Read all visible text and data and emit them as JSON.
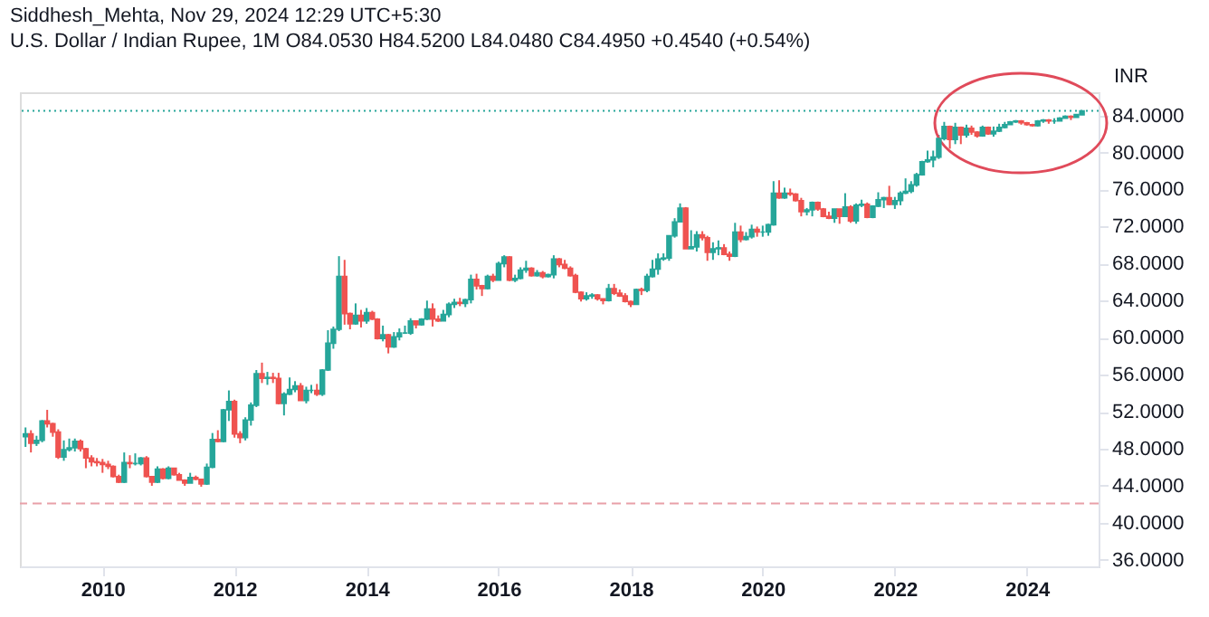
{
  "chart_data": {
    "type": "candlestick",
    "title": "Siddhesh_Mehta, Nov 29, 2024 12:29 UTC+5:30",
    "subtitle": "U.S. Dollar / Indian Rupee, 1M  O84.0530 H84.5200 L84.0480 C84.4950 +0.4540 (+0.54%)",
    "ylabel": "INR",
    "x": [
      "2008-11",
      "2008-12",
      "2009-01",
      "2009-02",
      "2009-03",
      "2009-04",
      "2009-05",
      "2009-06",
      "2009-07",
      "2009-08",
      "2009-09",
      "2009-10",
      "2009-11",
      "2009-12",
      "2010-01",
      "2010-02",
      "2010-03",
      "2010-04",
      "2010-05",
      "2010-06",
      "2010-07",
      "2010-08",
      "2010-09",
      "2010-10",
      "2010-11",
      "2010-12",
      "2011-01",
      "2011-02",
      "2011-03",
      "2011-04",
      "2011-05",
      "2011-06",
      "2011-07",
      "2011-08",
      "2011-09",
      "2011-10",
      "2011-11",
      "2011-12",
      "2012-01",
      "2012-02",
      "2012-03",
      "2012-04",
      "2012-05",
      "2012-06",
      "2012-07",
      "2012-08",
      "2012-09",
      "2012-10",
      "2012-11",
      "2012-12",
      "2013-01",
      "2013-02",
      "2013-03",
      "2013-04",
      "2013-05",
      "2013-06",
      "2013-07",
      "2013-08",
      "2013-09",
      "2013-10",
      "2013-11",
      "2013-12",
      "2014-01",
      "2014-02",
      "2014-03",
      "2014-04",
      "2014-05",
      "2014-06",
      "2014-07",
      "2014-08",
      "2014-09",
      "2014-10",
      "2014-11",
      "2014-12",
      "2015-01",
      "2015-02",
      "2015-03",
      "2015-04",
      "2015-05",
      "2015-06",
      "2015-07",
      "2015-08",
      "2015-09",
      "2015-10",
      "2015-11",
      "2015-12",
      "2016-01",
      "2016-02",
      "2016-03",
      "2016-04",
      "2016-05",
      "2016-06",
      "2016-07",
      "2016-08",
      "2016-09",
      "2016-10",
      "2016-11",
      "2016-12",
      "2017-01",
      "2017-02",
      "2017-03",
      "2017-04",
      "2017-05",
      "2017-06",
      "2017-07",
      "2017-08",
      "2017-09",
      "2017-10",
      "2017-11",
      "2017-12",
      "2018-01",
      "2018-02",
      "2018-03",
      "2018-04",
      "2018-05",
      "2018-06",
      "2018-07",
      "2018-08",
      "2018-09",
      "2018-10",
      "2018-11",
      "2018-12",
      "2019-01",
      "2019-02",
      "2019-03",
      "2019-04",
      "2019-05",
      "2019-06",
      "2019-07",
      "2019-08",
      "2019-09",
      "2019-10",
      "2019-11",
      "2019-12",
      "2020-01",
      "2020-02",
      "2020-03",
      "2020-04",
      "2020-05",
      "2020-06",
      "2020-07",
      "2020-08",
      "2020-09",
      "2020-10",
      "2020-11",
      "2020-12",
      "2021-01",
      "2021-02",
      "2021-03",
      "2021-04",
      "2021-05",
      "2021-06",
      "2021-07",
      "2021-08",
      "2021-09",
      "2021-10",
      "2021-11",
      "2021-12",
      "2022-01",
      "2022-02",
      "2022-03",
      "2022-04",
      "2022-05",
      "2022-06",
      "2022-07",
      "2022-08",
      "2022-09",
      "2022-10",
      "2022-11",
      "2022-12",
      "2023-01",
      "2023-02",
      "2023-03",
      "2023-04",
      "2023-05",
      "2023-06",
      "2023-07",
      "2023-08",
      "2023-09",
      "2023-10",
      "2023-11",
      "2023-12",
      "2024-01",
      "2024-02",
      "2024-03",
      "2024-04",
      "2024-05",
      "2024-06",
      "2024-07",
      "2024-08",
      "2024-09",
      "2024-10",
      "2024-11"
    ],
    "ohlc": [
      [
        49.3,
        50.3,
        48.2,
        49.6
      ],
      [
        49.6,
        50.0,
        47.6,
        48.6
      ],
      [
        48.6,
        49.4,
        48.3,
        48.9
      ],
      [
        48.9,
        51.1,
        48.7,
        51.0
      ],
      [
        51.0,
        52.2,
        50.3,
        50.7
      ],
      [
        50.7,
        50.8,
        49.3,
        49.8
      ],
      [
        49.8,
        50.1,
        46.9,
        47.1
      ],
      [
        47.1,
        48.9,
        46.7,
        47.9
      ],
      [
        47.9,
        49.1,
        47.7,
        48.1
      ],
      [
        48.1,
        49.1,
        47.7,
        48.8
      ],
      [
        48.8,
        49.0,
        47.7,
        48.0
      ],
      [
        48.0,
        48.1,
        45.9,
        47.0
      ],
      [
        47.0,
        47.3,
        46.1,
        46.6
      ],
      [
        46.6,
        47.0,
        46.1,
        46.5
      ],
      [
        46.5,
        46.9,
        45.4,
        46.3
      ],
      [
        46.3,
        46.7,
        45.8,
        46.1
      ],
      [
        46.1,
        46.2,
        44.9,
        45.0
      ],
      [
        45.0,
        45.2,
        44.3,
        44.4
      ],
      [
        44.4,
        47.6,
        44.3,
        46.5
      ],
      [
        46.5,
        47.3,
        45.9,
        46.4
      ],
      [
        46.4,
        47.5,
        46.2,
        46.4
      ],
      [
        46.4,
        47.1,
        46.2,
        47.0
      ],
      [
        47.0,
        47.2,
        44.9,
        45.0
      ],
      [
        45.0,
        45.0,
        44.0,
        44.4
      ],
      [
        44.4,
        46.1,
        44.3,
        45.8
      ],
      [
        45.8,
        45.9,
        44.7,
        44.8
      ],
      [
        44.8,
        46.1,
        44.7,
        45.9
      ],
      [
        45.9,
        45.9,
        45.1,
        45.2
      ],
      [
        45.2,
        45.4,
        44.6,
        44.6
      ],
      [
        44.6,
        44.7,
        44.0,
        44.3
      ],
      [
        44.3,
        45.4,
        44.3,
        44.9
      ],
      [
        44.9,
        45.1,
        44.6,
        44.7
      ],
      [
        44.7,
        44.7,
        43.9,
        44.2
      ],
      [
        44.2,
        46.4,
        44.1,
        46.0
      ],
      [
        46.0,
        49.7,
        45.9,
        49.0
      ],
      [
        49.0,
        50.0,
        48.7,
        48.8
      ],
      [
        48.8,
        52.3,
        48.7,
        52.2
      ],
      [
        52.2,
        54.3,
        51.0,
        53.1
      ],
      [
        53.1,
        53.3,
        49.2,
        49.6
      ],
      [
        49.6,
        49.9,
        48.6,
        49.2
      ],
      [
        49.2,
        51.4,
        48.9,
        51.1
      ],
      [
        51.1,
        53.0,
        50.5,
        52.7
      ],
      [
        52.7,
        56.5,
        52.5,
        56.1
      ],
      [
        56.1,
        57.3,
        55.1,
        55.6
      ],
      [
        55.6,
        56.3,
        54.9,
        55.7
      ],
      [
        55.7,
        56.2,
        55.1,
        55.6
      ],
      [
        55.6,
        56.2,
        52.8,
        52.9
      ],
      [
        52.9,
        54.1,
        51.6,
        53.9
      ],
      [
        53.9,
        55.7,
        53.8,
        54.4
      ],
      [
        54.4,
        55.3,
        54.1,
        54.8
      ],
      [
        54.8,
        55.1,
        53.2,
        53.2
      ],
      [
        53.2,
        54.7,
        52.9,
        54.3
      ],
      [
        54.3,
        54.9,
        54.0,
        54.3
      ],
      [
        54.3,
        55.0,
        53.7,
        53.9
      ],
      [
        53.9,
        56.6,
        53.7,
        56.5
      ],
      [
        56.5,
        60.8,
        56.4,
        59.4
      ],
      [
        59.4,
        61.2,
        58.8,
        60.9
      ],
      [
        60.9,
        68.8,
        60.7,
        66.6
      ],
      [
        66.6,
        68.4,
        61.4,
        62.6
      ],
      [
        62.6,
        62.7,
        60.9,
        61.5
      ],
      [
        61.5,
        63.7,
        61.4,
        62.4
      ],
      [
        62.4,
        63.0,
        61.1,
        61.8
      ],
      [
        61.8,
        63.2,
        61.5,
        62.7
      ],
      [
        62.7,
        62.9,
        61.9,
        62.0
      ],
      [
        62.0,
        62.1,
        59.8,
        59.9
      ],
      [
        59.9,
        61.3,
        59.6,
        60.3
      ],
      [
        60.3,
        60.4,
        58.3,
        59.0
      ],
      [
        59.0,
        60.6,
        58.9,
        60.1
      ],
      [
        60.1,
        61.0,
        59.7,
        60.5
      ],
      [
        60.5,
        61.3,
        60.4,
        60.5
      ],
      [
        60.5,
        62.1,
        60.3,
        61.8
      ],
      [
        61.8,
        61.8,
        61.0,
        61.4
      ],
      [
        61.4,
        62.1,
        61.3,
        62.0
      ],
      [
        62.0,
        64.0,
        61.9,
        63.1
      ],
      [
        63.1,
        63.7,
        61.2,
        62.0
      ],
      [
        62.0,
        62.4,
        61.7,
        61.8
      ],
      [
        61.8,
        63.0,
        61.8,
        62.5
      ],
      [
        62.5,
        63.8,
        62.2,
        63.6
      ],
      [
        63.6,
        64.2,
        63.2,
        63.8
      ],
      [
        63.8,
        64.3,
        63.4,
        63.7
      ],
      [
        63.7,
        64.2,
        63.3,
        64.1
      ],
      [
        64.1,
        66.8,
        63.7,
        66.3
      ],
      [
        66.3,
        66.9,
        65.2,
        65.6
      ],
      [
        65.6,
        65.7,
        64.5,
        65.3
      ],
      [
        65.3,
        66.8,
        65.2,
        66.6
      ],
      [
        66.6,
        66.9,
        66.0,
        66.2
      ],
      [
        66.2,
        68.2,
        66.2,
        68.0
      ],
      [
        68.0,
        68.9,
        67.6,
        68.7
      ],
      [
        68.7,
        68.8,
        66.1,
        66.2
      ],
      [
        66.2,
        66.8,
        66.0,
        66.4
      ],
      [
        66.4,
        67.6,
        66.3,
        67.3
      ],
      [
        67.3,
        68.3,
        67.0,
        67.5
      ],
      [
        67.5,
        67.6,
        66.6,
        66.7
      ],
      [
        66.7,
        67.3,
        66.6,
        67.0
      ],
      [
        67.0,
        67.2,
        66.4,
        66.6
      ],
      [
        66.6,
        66.9,
        66.5,
        66.8
      ],
      [
        66.8,
        68.9,
        66.4,
        68.5
      ],
      [
        68.5,
        68.6,
        67.6,
        67.9
      ],
      [
        67.9,
        68.4,
        67.4,
        67.5
      ],
      [
        67.5,
        67.7,
        66.6,
        66.7
      ],
      [
        66.7,
        66.9,
        64.8,
        64.9
      ],
      [
        64.9,
        65.0,
        63.9,
        64.2
      ],
      [
        64.2,
        64.9,
        64.0,
        64.5
      ],
      [
        64.5,
        64.8,
        64.2,
        64.6
      ],
      [
        64.6,
        64.7,
        64.0,
        64.2
      ],
      [
        64.2,
        64.2,
        63.6,
        64.0
      ],
      [
        64.0,
        65.8,
        63.9,
        65.3
      ],
      [
        65.3,
        65.8,
        64.6,
        64.8
      ],
      [
        64.8,
        65.2,
        64.4,
        64.5
      ],
      [
        64.5,
        64.8,
        63.8,
        63.9
      ],
      [
        63.9,
        64.0,
        63.3,
        63.6
      ],
      [
        63.6,
        65.3,
        63.6,
        65.2
      ],
      [
        65.2,
        65.4,
        64.6,
        65.1
      ],
      [
        65.1,
        66.9,
        64.9,
        66.6
      ],
      [
        66.6,
        68.4,
        66.5,
        67.4
      ],
      [
        67.4,
        69.1,
        66.8,
        68.5
      ],
      [
        68.5,
        69.1,
        68.3,
        68.6
      ],
      [
        68.6,
        71.0,
        68.3,
        71.0
      ],
      [
        71.0,
        72.9,
        70.8,
        72.5
      ],
      [
        72.5,
        74.5,
        72.5,
        74.0
      ],
      [
        74.0,
        74.1,
        69.6,
        69.6
      ],
      [
        69.6,
        71.6,
        69.6,
        69.8
      ],
      [
        69.8,
        71.5,
        69.3,
        71.1
      ],
      [
        71.1,
        71.5,
        70.5,
        70.8
      ],
      [
        70.8,
        71.0,
        68.3,
        69.2
      ],
      [
        69.2,
        70.3,
        68.4,
        69.6
      ],
      [
        69.6,
        70.5,
        68.9,
        69.7
      ],
      [
        69.7,
        70.1,
        68.9,
        69.0
      ],
      [
        69.0,
        69.3,
        68.3,
        68.8
      ],
      [
        68.8,
        72.4,
        68.7,
        71.4
      ],
      [
        71.4,
        72.1,
        70.3,
        70.6
      ],
      [
        70.6,
        71.4,
        70.5,
        70.9
      ],
      [
        70.9,
        72.2,
        70.7,
        71.7
      ],
      [
        71.7,
        72.0,
        70.9,
        71.4
      ],
      [
        71.4,
        72.1,
        70.9,
        71.4
      ],
      [
        71.4,
        72.3,
        71.0,
        72.2
      ],
      [
        72.2,
        76.9,
        72.1,
        75.6
      ],
      [
        75.6,
        77.0,
        75.0,
        75.1
      ],
      [
        75.1,
        76.2,
        75.0,
        75.6
      ],
      [
        75.6,
        76.1,
        75.3,
        75.5
      ],
      [
        75.5,
        75.6,
        74.7,
        74.8
      ],
      [
        74.8,
        75.1,
        73.1,
        73.6
      ],
      [
        73.6,
        74.0,
        73.2,
        73.8
      ],
      [
        73.8,
        74.7,
        73.1,
        74.6
      ],
      [
        74.6,
        74.7,
        73.7,
        73.9
      ],
      [
        73.9,
        74.0,
        73.0,
        73.1
      ],
      [
        73.1,
        73.6,
        72.8,
        72.9
      ],
      [
        72.9,
        73.9,
        72.4,
        73.9
      ],
      [
        73.9,
        73.9,
        72.3,
        73.1
      ],
      [
        73.1,
        75.6,
        73.1,
        74.1
      ],
      [
        74.1,
        74.3,
        72.4,
        72.6
      ],
      [
        72.6,
        74.5,
        72.3,
        74.3
      ],
      [
        74.3,
        74.9,
        74.1,
        74.4
      ],
      [
        74.4,
        74.6,
        72.9,
        73.0
      ],
      [
        73.0,
        74.3,
        72.9,
        74.2
      ],
      [
        74.2,
        75.7,
        74.1,
        74.9
      ],
      [
        74.9,
        75.2,
        74.0,
        75.1
      ],
      [
        75.1,
        76.4,
        74.3,
        74.4
      ],
      [
        74.4,
        75.2,
        73.9,
        74.8
      ],
      [
        74.8,
        75.8,
        74.3,
        75.6
      ],
      [
        75.6,
        77.2,
        75.5,
        75.8
      ],
      [
        75.8,
        76.9,
        75.6,
        76.5
      ],
      [
        76.5,
        77.8,
        76.3,
        77.6
      ],
      [
        77.6,
        79.1,
        77.5,
        79.0
      ],
      [
        79.0,
        80.2,
        78.9,
        79.2
      ],
      [
        79.2,
        80.2,
        78.4,
        79.5
      ],
      [
        79.5,
        81.9,
        79.3,
        81.5
      ],
      [
        81.5,
        83.3,
        81.3,
        82.8
      ],
      [
        82.8,
        82.9,
        80.4,
        81.4
      ],
      [
        81.4,
        83.2,
        80.9,
        82.7
      ],
      [
        82.7,
        82.8,
        80.9,
        81.9
      ],
      [
        81.9,
        83.0,
        81.6,
        82.6
      ],
      [
        82.6,
        82.9,
        81.9,
        82.2
      ],
      [
        82.2,
        82.3,
        81.6,
        81.8
      ],
      [
        81.8,
        82.9,
        81.7,
        82.7
      ],
      [
        82.7,
        82.8,
        81.9,
        82.0
      ],
      [
        82.0,
        82.8,
        81.7,
        82.3
      ],
      [
        82.3,
        83.1,
        82.2,
        82.7
      ],
      [
        82.7,
        83.3,
        82.6,
        83.0
      ],
      [
        83.0,
        83.4,
        83.0,
        83.3
      ],
      [
        83.3,
        83.5,
        83.2,
        83.4
      ],
      [
        83.4,
        83.5,
        83.0,
        83.2
      ],
      [
        83.2,
        83.3,
        82.9,
        83.0
      ],
      [
        83.0,
        83.1,
        82.8,
        82.9
      ],
      [
        82.9,
        83.5,
        82.8,
        83.4
      ],
      [
        83.4,
        83.6,
        83.2,
        83.5
      ],
      [
        83.5,
        83.6,
        83.1,
        83.4
      ],
      [
        83.4,
        83.7,
        83.1,
        83.4
      ],
      [
        83.4,
        83.8,
        83.4,
        83.7
      ],
      [
        83.7,
        84.0,
        83.7,
        83.9
      ],
      [
        83.9,
        84.0,
        83.5,
        83.8
      ],
      [
        83.8,
        84.1,
        83.8,
        84.1
      ],
      [
        84.053,
        84.52,
        84.048,
        84.495
      ]
    ],
    "xlim": [
      "2008-10",
      "2025-02"
    ],
    "xticks": [
      {
        "value": "2010",
        "label": "2010"
      },
      {
        "value": "2012",
        "label": "2012"
      },
      {
        "value": "2014",
        "label": "2014"
      },
      {
        "value": "2016",
        "label": "2016"
      },
      {
        "value": "2018",
        "label": "2018"
      },
      {
        "value": "2020",
        "label": "2020"
      },
      {
        "value": "2022",
        "label": "2022"
      },
      {
        "value": "2024",
        "label": "2024"
      }
    ],
    "ylim": [
      35.3,
      86.5
    ],
    "yticks": [
      {
        "value": 36,
        "label": "36.0000"
      },
      {
        "value": 40,
        "label": "40.0000"
      },
      {
        "value": 44,
        "label": "44.0000"
      },
      {
        "value": 48,
        "label": "48.0000"
      },
      {
        "value": 52,
        "label": "52.0000"
      },
      {
        "value": 56,
        "label": "56.0000"
      },
      {
        "value": 60,
        "label": "60.0000"
      },
      {
        "value": 64,
        "label": "64.0000"
      },
      {
        "value": 68,
        "label": "68.0000"
      },
      {
        "value": 72,
        "label": "72.0000"
      },
      {
        "value": 76,
        "label": "76.0000"
      },
      {
        "value": 80,
        "label": "80.0000"
      },
      {
        "value": 84,
        "label": "84.0000"
      }
    ],
    "ref_lines": [
      {
        "axis": "y",
        "value": 84.495,
        "label": null,
        "color": "#26a69a",
        "line_style": "dotted"
      },
      {
        "axis": "y",
        "value": 42.1,
        "label": null,
        "color": "#e8a0a8",
        "line_style": "dashed"
      }
    ]
  }
}
